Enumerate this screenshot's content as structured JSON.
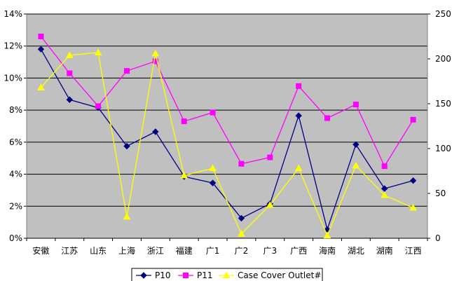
{
  "chart_data": {
    "type": "line",
    "categories": [
      "安徽",
      "江苏",
      "山东",
      "上海",
      "浙江",
      "福建",
      "广1",
      "广2",
      "广3",
      "广西",
      "海南",
      "湖北",
      "湖南",
      "江西"
    ],
    "y_left": {
      "ticks": [
        "0%",
        "2%",
        "4%",
        "6%",
        "8%",
        "10%",
        "12%",
        "14%"
      ],
      "range": [
        0,
        0.14
      ]
    },
    "y_right": {
      "ticks": [
        "0",
        "50",
        "100",
        "150",
        "200",
        "250"
      ],
      "range": [
        0,
        250
      ]
    },
    "series": [
      {
        "name": "P10",
        "axis": "left",
        "color": "#000080",
        "marker": "diamond",
        "values": [
          0.118,
          0.0865,
          0.0815,
          0.0575,
          0.0665,
          0.0385,
          0.0345,
          0.0125,
          0.0215,
          0.0765,
          0.0055,
          0.0585,
          0.031,
          0.036
        ]
      },
      {
        "name": "P11",
        "axis": "left",
        "color": "#ff00ff",
        "marker": "square",
        "values": [
          0.126,
          0.103,
          0.0825,
          0.1045,
          0.1105,
          0.073,
          0.0785,
          0.0465,
          0.0505,
          0.095,
          0.075,
          0.0835,
          0.045,
          0.074
        ]
      },
      {
        "name": "Case Cover Outlet#",
        "axis": "right",
        "color": "#ffff00",
        "marker": "triangle",
        "values": [
          168,
          204,
          207,
          24,
          206,
          70,
          78,
          5,
          37,
          78,
          3,
          81,
          48,
          34
        ]
      }
    ],
    "grid": true,
    "legend": "bottom",
    "plot_background": "#c0c0c0"
  }
}
